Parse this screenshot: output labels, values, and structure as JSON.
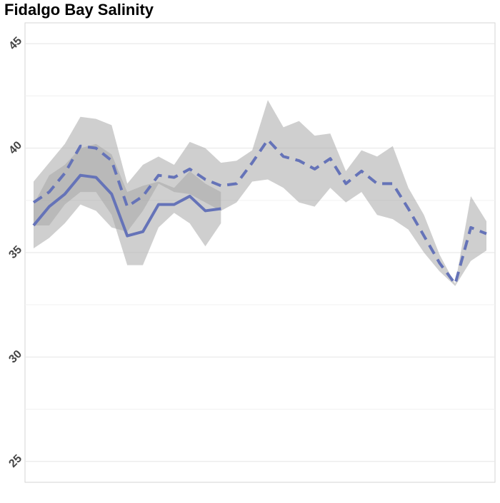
{
  "chart_data": {
    "type": "line",
    "title": "Fidalgo Bay Salinity",
    "categories": [
      null,
      null,
      null,
      null,
      null,
      null,
      null,
      null,
      null,
      null,
      null,
      null,
      null,
      null,
      null,
      null,
      null,
      null,
      null,
      null,
      null,
      null,
      null,
      null,
      null,
      null,
      null,
      null,
      null,
      null
    ],
    "ylim": [
      24,
      46
    ],
    "yticks": [
      25,
      30,
      35,
      40,
      45
    ],
    "grid": true,
    "band_color": "#a8a8a8",
    "band_opacity": 0.55,
    "series": [
      {
        "color": "#6573b8",
        "dash": false,
        "values": [
          36.3,
          37.2,
          37.8,
          38.7,
          38.6,
          37.8,
          35.8,
          36.0,
          37.3,
          37.3,
          37.7,
          37.0,
          37.1,
          null,
          null,
          null,
          null,
          null,
          null,
          null,
          null,
          null,
          null,
          null,
          null,
          null,
          null,
          null,
          null,
          null
        ],
        "upper": [
          37.3,
          38.7,
          39.2,
          40.0,
          40.2,
          39.7,
          37.9,
          38.2,
          38.4,
          38.1,
          38.9,
          38.3,
          37.9,
          null,
          null,
          null,
          null,
          null,
          null,
          null,
          null,
          null,
          null,
          null,
          null,
          null,
          null,
          null,
          null,
          null
        ],
        "lower": [
          36.3,
          36.3,
          37.3,
          37.9,
          37.9,
          36.8,
          34.4,
          34.4,
          36.2,
          36.9,
          36.4,
          35.3,
          36.4,
          null,
          null,
          null,
          null,
          null,
          null,
          null,
          null,
          null,
          null,
          null,
          null,
          null,
          null,
          null,
          null,
          null
        ]
      },
      {
        "color": "#6573b8",
        "dash": true,
        "values": [
          37.4,
          37.9,
          38.8,
          40.1,
          40.0,
          39.4,
          37.2,
          37.7,
          38.7,
          38.6,
          39.0,
          38.5,
          38.2,
          38.3,
          39.3,
          40.4,
          39.6,
          39.4,
          39.0,
          39.5,
          38.3,
          38.9,
          38.3,
          38.3,
          37.1,
          35.8,
          34.5,
          33.5,
          36.2,
          35.9
        ],
        "upper": [
          38.4,
          39.3,
          40.2,
          41.5,
          41.4,
          41.1,
          38.3,
          39.2,
          39.6,
          39.2,
          40.3,
          40.0,
          39.3,
          39.4,
          39.9,
          42.3,
          41.0,
          41.3,
          40.6,
          40.7,
          38.9,
          39.9,
          39.6,
          40.1,
          38.1,
          36.8,
          34.9,
          33.5,
          37.7,
          36.5
        ],
        "lower": [
          35.2,
          35.7,
          36.4,
          37.3,
          37.0,
          36.2,
          36.0,
          37.0,
          38.3,
          37.9,
          37.8,
          37.4,
          37.0,
          37.4,
          38.4,
          38.5,
          38.1,
          37.4,
          37.2,
          38.1,
          37.4,
          37.9,
          36.8,
          36.6,
          36.1,
          35.0,
          34.1,
          33.4,
          34.6,
          35.1
        ]
      }
    ]
  }
}
